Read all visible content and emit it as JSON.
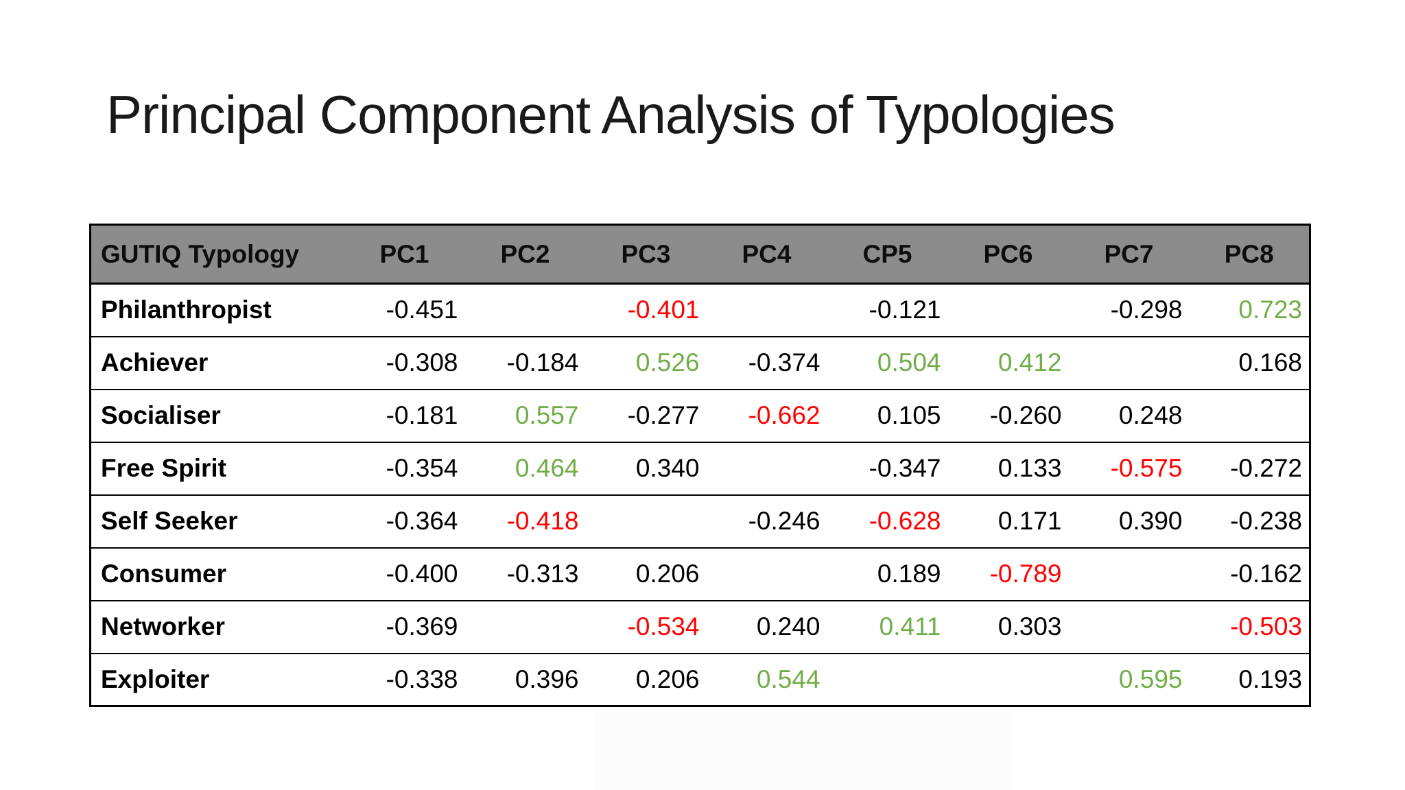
{
  "slide": {
    "title": "Principal Component Analysis of Typologies",
    "colors": {
      "title": "#1a1a1a",
      "header_bg": "#8c8c8c",
      "green": "#70AD47",
      "red": "#FF0000",
      "black": "#000000"
    },
    "table": {
      "header": [
        "GUTIQ Typology",
        "PC1",
        "PC2",
        "PC3",
        "PC4",
        "CP5",
        "PC6",
        "PC7",
        "PC8"
      ],
      "rows": [
        {
          "label": "Philanthropist",
          "cells": [
            {
              "v": "-0.451",
              "c": "black"
            },
            {
              "v": "",
              "c": "black"
            },
            {
              "v": "-0.401",
              "c": "red"
            },
            {
              "v": "",
              "c": "black"
            },
            {
              "v": "-0.121",
              "c": "black"
            },
            {
              "v": "",
              "c": "black"
            },
            {
              "v": "-0.298",
              "c": "black"
            },
            {
              "v": "0.723",
              "c": "green"
            }
          ]
        },
        {
          "label": "Achiever",
          "cells": [
            {
              "v": "-0.308",
              "c": "black"
            },
            {
              "v": "-0.184",
              "c": "black"
            },
            {
              "v": "0.526",
              "c": "green"
            },
            {
              "v": "-0.374",
              "c": "black"
            },
            {
              "v": "0.504",
              "c": "green"
            },
            {
              "v": "0.412",
              "c": "green"
            },
            {
              "v": "",
              "c": "black"
            },
            {
              "v": "0.168",
              "c": "black"
            }
          ]
        },
        {
          "label": "Socialiser",
          "cells": [
            {
              "v": "-0.181",
              "c": "black"
            },
            {
              "v": "0.557",
              "c": "green"
            },
            {
              "v": "-0.277",
              "c": "black"
            },
            {
              "v": "-0.662",
              "c": "red"
            },
            {
              "v": "0.105",
              "c": "black"
            },
            {
              "v": "-0.260",
              "c": "black"
            },
            {
              "v": "0.248",
              "c": "black"
            },
            {
              "v": "",
              "c": "black"
            }
          ]
        },
        {
          "label": "Free Spirit",
          "cells": [
            {
              "v": "-0.354",
              "c": "black"
            },
            {
              "v": "0.464",
              "c": "green"
            },
            {
              "v": "0.340",
              "c": "black"
            },
            {
              "v": "",
              "c": "black"
            },
            {
              "v": "-0.347",
              "c": "black"
            },
            {
              "v": "0.133",
              "c": "black"
            },
            {
              "v": "-0.575",
              "c": "red"
            },
            {
              "v": "-0.272",
              "c": "black"
            }
          ]
        },
        {
          "label": "Self Seeker",
          "cells": [
            {
              "v": "-0.364",
              "c": "black"
            },
            {
              "v": "-0.418",
              "c": "red"
            },
            {
              "v": "",
              "c": "black"
            },
            {
              "v": "-0.246",
              "c": "black"
            },
            {
              "v": "-0.628",
              "c": "red"
            },
            {
              "v": "0.171",
              "c": "black"
            },
            {
              "v": "0.390",
              "c": "black"
            },
            {
              "v": "-0.238",
              "c": "black"
            }
          ]
        },
        {
          "label": "Consumer",
          "cells": [
            {
              "v": "-0.400",
              "c": "black"
            },
            {
              "v": "-0.313",
              "c": "black"
            },
            {
              "v": "0.206",
              "c": "black"
            },
            {
              "v": "",
              "c": "black"
            },
            {
              "v": "0.189",
              "c": "black"
            },
            {
              "v": "-0.789",
              "c": "red"
            },
            {
              "v": "",
              "c": "black"
            },
            {
              "v": "-0.162",
              "c": "black"
            }
          ]
        },
        {
          "label": "Networker",
          "cells": [
            {
              "v": "-0.369",
              "c": "black"
            },
            {
              "v": "",
              "c": "black"
            },
            {
              "v": "-0.534",
              "c": "red"
            },
            {
              "v": "0.240",
              "c": "black"
            },
            {
              "v": "0.411",
              "c": "green"
            },
            {
              "v": "0.303",
              "c": "black"
            },
            {
              "v": "",
              "c": "black"
            },
            {
              "v": "-0.503",
              "c": "red"
            }
          ]
        },
        {
          "label": "Exploiter",
          "cells": [
            {
              "v": "-0.338",
              "c": "black"
            },
            {
              "v": "0.396",
              "c": "black"
            },
            {
              "v": "0.206",
              "c": "black"
            },
            {
              "v": "0.544",
              "c": "green"
            },
            {
              "v": "",
              "c": "black"
            },
            {
              "v": "",
              "c": "black"
            },
            {
              "v": "0.595",
              "c": "green"
            },
            {
              "v": "0.193",
              "c": "black"
            }
          ]
        }
      ]
    }
  }
}
